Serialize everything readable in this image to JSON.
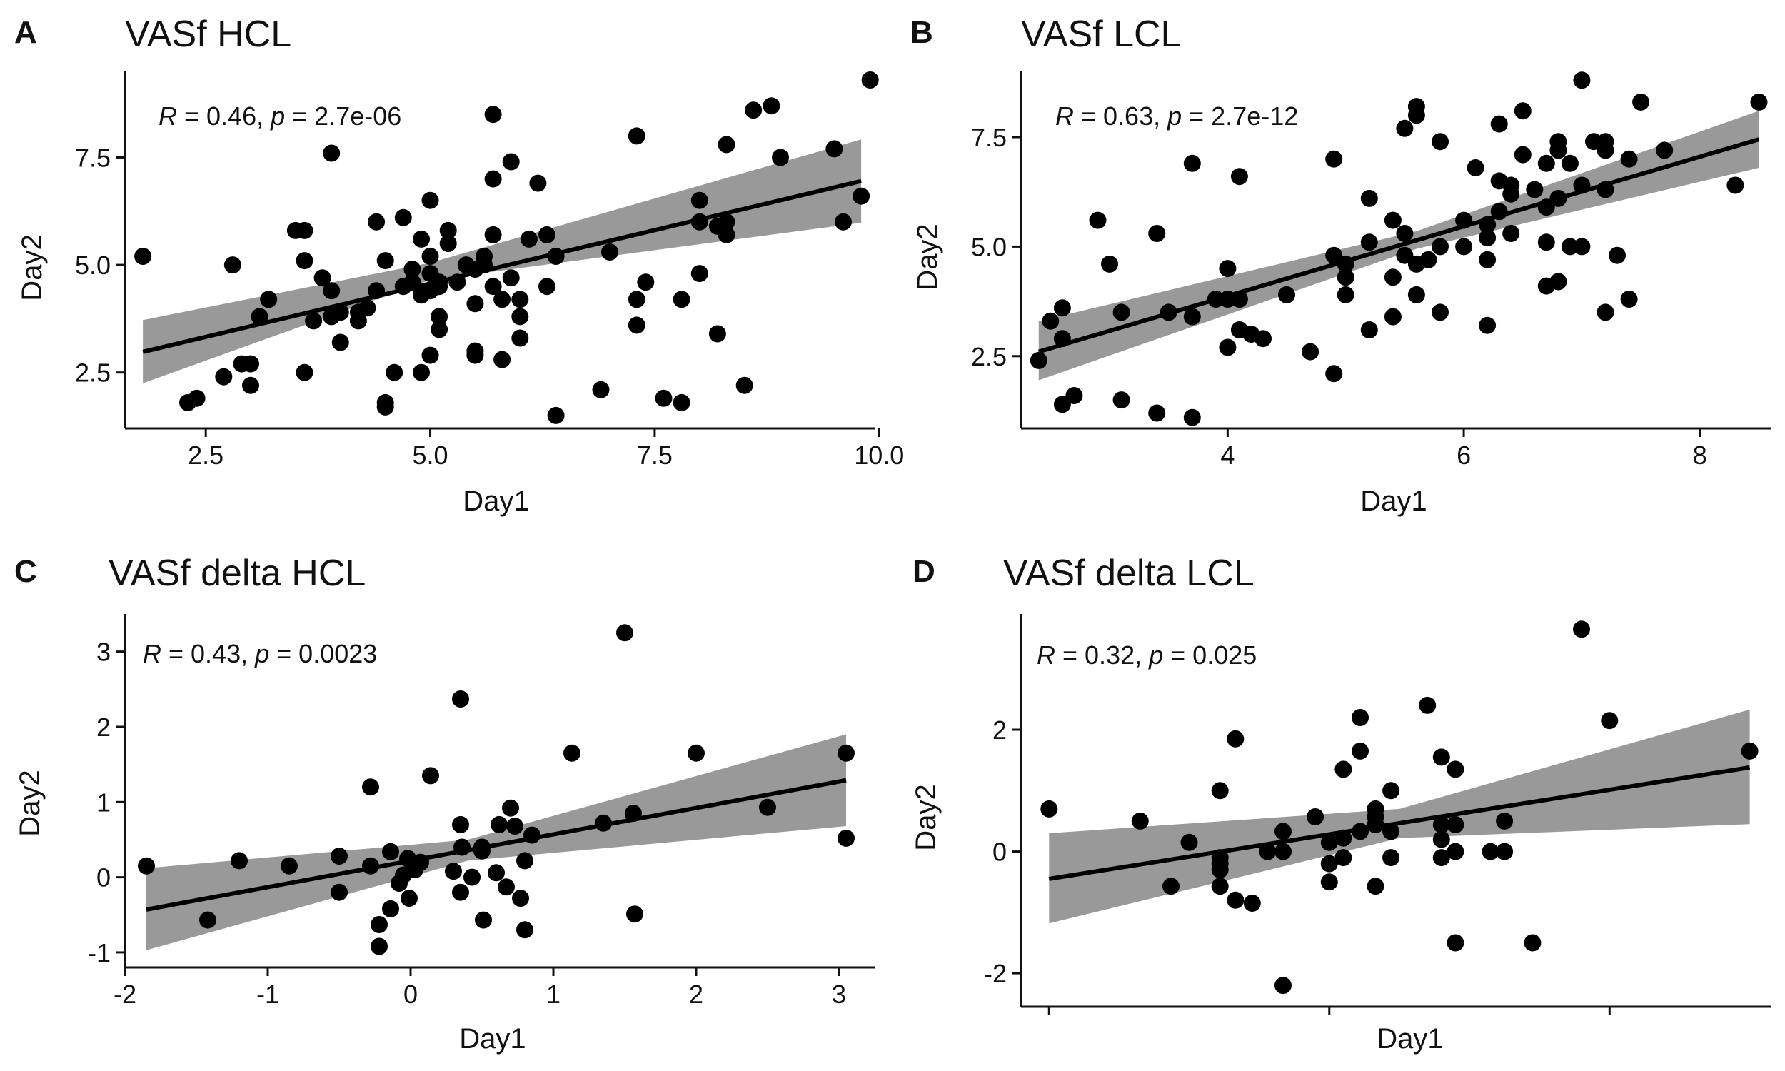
{
  "chart_data": [
    {
      "type": "scatter",
      "panel_letter": "A",
      "title": "VASf HCL",
      "xlabel": "Day1",
      "ylabel": "Day2",
      "stat": {
        "r_symbol": "R",
        "r_text": " = 0.46, ",
        "p_symbol": "p",
        "p_text": " = 2.7e-06"
      },
      "xlim": [
        1.6,
        9.95
      ],
      "ylim": [
        1.2,
        9.5
      ],
      "xticks": [
        {
          "value": 2.5,
          "label": "2.5"
        },
        {
          "value": 5.0,
          "label": "5.0"
        },
        {
          "value": 7.5,
          "label": "7.5"
        },
        {
          "value": 10.0,
          "label": "10.0"
        }
      ],
      "yticks": [
        {
          "value": 2.5,
          "label": "2.5"
        },
        {
          "value": 5.0,
          "label": "5.0"
        },
        {
          "value": 7.5,
          "label": "7.5"
        }
      ],
      "regression": {
        "x": [
          1.8,
          9.8
        ],
        "y": [
          2.98,
          6.95
        ]
      },
      "ci_band": {
        "x": [
          1.8,
          5.0,
          9.8
        ],
        "lower": [
          2.25,
          4.65,
          5.98
        ],
        "upper": [
          3.72,
          5.05,
          7.92
        ]
      },
      "points": [
        [
          1.8,
          5.2
        ],
        [
          2.3,
          1.8
        ],
        [
          2.4,
          1.9
        ],
        [
          2.7,
          2.4
        ],
        [
          2.8,
          5.0
        ],
        [
          2.9,
          2.7
        ],
        [
          3.0,
          2.7
        ],
        [
          3.0,
          2.2
        ],
        [
          3.1,
          3.8
        ],
        [
          3.2,
          4.2
        ],
        [
          3.5,
          5.8
        ],
        [
          3.6,
          5.8
        ],
        [
          3.6,
          2.5
        ],
        [
          3.6,
          5.1
        ],
        [
          3.7,
          3.7
        ],
        [
          3.8,
          4.7
        ],
        [
          3.9,
          7.6
        ],
        [
          3.9,
          4.4
        ],
        [
          3.9,
          3.8
        ],
        [
          4.0,
          3.9
        ],
        [
          4.0,
          3.2
        ],
        [
          4.2,
          3.9
        ],
        [
          4.2,
          3.7
        ],
        [
          4.3,
          4.0
        ],
        [
          4.4,
          6.0
        ],
        [
          4.4,
          4.4
        ],
        [
          4.5,
          5.1
        ],
        [
          4.5,
          1.8
        ],
        [
          4.5,
          1.7
        ],
        [
          4.6,
          2.5
        ],
        [
          4.7,
          6.1
        ],
        [
          4.7,
          4.5
        ],
        [
          4.8,
          4.9
        ],
        [
          4.8,
          4.6
        ],
        [
          4.9,
          5.6
        ],
        [
          4.9,
          4.3
        ],
        [
          4.9,
          2.5
        ],
        [
          5.0,
          4.8
        ],
        [
          5.0,
          2.9
        ],
        [
          5.0,
          6.5
        ],
        [
          5.0,
          5.2
        ],
        [
          5.0,
          4.4
        ],
        [
          5.1,
          3.8
        ],
        [
          5.1,
          3.5
        ],
        [
          5.1,
          4.6
        ],
        [
          5.1,
          4.5
        ],
        [
          5.2,
          5.8
        ],
        [
          5.2,
          5.5
        ],
        [
          5.3,
          4.6
        ],
        [
          5.4,
          5.0
        ],
        [
          5.5,
          4.9
        ],
        [
          5.5,
          4.1
        ],
        [
          5.5,
          2.9
        ],
        [
          5.5,
          3.0
        ],
        [
          5.6,
          5.2
        ],
        [
          5.6,
          5.0
        ],
        [
          5.7,
          8.5
        ],
        [
          5.7,
          7.0
        ],
        [
          5.7,
          5.7
        ],
        [
          5.7,
          4.5
        ],
        [
          5.8,
          2.8
        ],
        [
          5.8,
          4.2
        ],
        [
          5.9,
          7.4
        ],
        [
          5.9,
          4.7
        ],
        [
          6.0,
          4.2
        ],
        [
          6.0,
          3.8
        ],
        [
          6.0,
          3.3
        ],
        [
          6.1,
          5.6
        ],
        [
          6.2,
          6.9
        ],
        [
          6.3,
          5.7
        ],
        [
          6.3,
          4.5
        ],
        [
          6.4,
          1.5
        ],
        [
          6.4,
          5.2
        ],
        [
          6.9,
          2.1
        ],
        [
          7.0,
          5.3
        ],
        [
          7.3,
          8.0
        ],
        [
          7.3,
          4.2
        ],
        [
          7.3,
          3.6
        ],
        [
          7.4,
          4.6
        ],
        [
          7.6,
          1.9
        ],
        [
          7.8,
          1.8
        ],
        [
          7.8,
          4.2
        ],
        [
          8.0,
          6.5
        ],
        [
          8.0,
          6.0
        ],
        [
          8.0,
          4.8
        ],
        [
          8.2,
          5.9
        ],
        [
          8.2,
          3.4
        ],
        [
          8.3,
          7.8
        ],
        [
          8.3,
          6.0
        ],
        [
          8.3,
          5.7
        ],
        [
          8.5,
          2.2
        ],
        [
          8.6,
          8.6
        ],
        [
          8.8,
          8.7
        ],
        [
          8.9,
          7.5
        ],
        [
          9.5,
          7.7
        ],
        [
          9.6,
          6.0
        ],
        [
          9.8,
          6.6
        ],
        [
          9.9,
          9.3
        ]
      ]
    },
    {
      "type": "scatter",
      "panel_letter": "B",
      "title": "VASf LCL",
      "xlabel": "Day1",
      "ylabel": "Day2",
      "stat": {
        "r_symbol": "R",
        "r_text": " = 0.63, ",
        "p_symbol": "p",
        "p_text": " = 2.7e-12"
      },
      "xlim": [
        2.25,
        8.6
      ],
      "ylim": [
        0.85,
        9.0
      ],
      "xticks": [
        {
          "value": 4,
          "label": "4"
        },
        {
          "value": 6,
          "label": "6"
        },
        {
          "value": 8,
          "label": "8"
        }
      ],
      "yticks": [
        {
          "value": 2.5,
          "label": "2.5"
        },
        {
          "value": 5.0,
          "label": "5.0"
        },
        {
          "value": 7.5,
          "label": "7.5"
        }
      ],
      "regression": {
        "x": [
          2.4,
          8.5
        ],
        "y": [
          2.6,
          7.45
        ]
      },
      "ci_band": {
        "x": [
          2.4,
          5.6,
          8.5
        ],
        "lower": [
          1.95,
          4.95,
          6.8
        ],
        "upper": [
          3.3,
          5.35,
          8.1
        ]
      },
      "points": [
        [
          2.4,
          2.4
        ],
        [
          2.5,
          3.3
        ],
        [
          2.6,
          3.6
        ],
        [
          2.6,
          2.9
        ],
        [
          2.6,
          1.4
        ],
        [
          2.7,
          1.6
        ],
        [
          2.9,
          5.6
        ],
        [
          3.0,
          4.6
        ],
        [
          3.1,
          3.5
        ],
        [
          3.1,
          1.5
        ],
        [
          3.4,
          5.3
        ],
        [
          3.4,
          1.2
        ],
        [
          3.5,
          3.5
        ],
        [
          3.7,
          6.9
        ],
        [
          3.7,
          3.4
        ],
        [
          3.7,
          1.1
        ],
        [
          3.9,
          3.8
        ],
        [
          4.0,
          4.5
        ],
        [
          4.0,
          3.8
        ],
        [
          4.0,
          2.7
        ],
        [
          4.1,
          6.6
        ],
        [
          4.1,
          3.8
        ],
        [
          4.1,
          3.1
        ],
        [
          4.2,
          3.0
        ],
        [
          4.3,
          2.9
        ],
        [
          4.5,
          3.9
        ],
        [
          4.7,
          2.6
        ],
        [
          4.9,
          7.0
        ],
        [
          4.9,
          4.8
        ],
        [
          4.9,
          2.1
        ],
        [
          5.0,
          4.6
        ],
        [
          5.0,
          4.3
        ],
        [
          5.0,
          3.9
        ],
        [
          5.2,
          6.1
        ],
        [
          5.2,
          5.1
        ],
        [
          5.2,
          3.1
        ],
        [
          5.4,
          5.6
        ],
        [
          5.4,
          4.3
        ],
        [
          5.4,
          3.4
        ],
        [
          5.5,
          7.7
        ],
        [
          5.5,
          5.3
        ],
        [
          5.5,
          4.8
        ],
        [
          5.6,
          8.2
        ],
        [
          5.6,
          8.0
        ],
        [
          5.6,
          4.6
        ],
        [
          5.6,
          3.9
        ],
        [
          5.7,
          4.7
        ],
        [
          5.8,
          7.4
        ],
        [
          5.8,
          5.0
        ],
        [
          5.8,
          3.5
        ],
        [
          6.0,
          5.6
        ],
        [
          6.0,
          5.0
        ],
        [
          6.1,
          6.8
        ],
        [
          6.2,
          5.5
        ],
        [
          6.2,
          5.2
        ],
        [
          6.2,
          4.7
        ],
        [
          6.2,
          3.2
        ],
        [
          6.3,
          7.8
        ],
        [
          6.3,
          6.5
        ],
        [
          6.3,
          5.8
        ],
        [
          6.4,
          6.4
        ],
        [
          6.4,
          6.2
        ],
        [
          6.4,
          5.3
        ],
        [
          6.5,
          8.1
        ],
        [
          6.5,
          7.1
        ],
        [
          6.6,
          6.3
        ],
        [
          6.7,
          6.9
        ],
        [
          6.7,
          5.9
        ],
        [
          6.7,
          5.1
        ],
        [
          6.7,
          4.1
        ],
        [
          6.8,
          7.4
        ],
        [
          6.8,
          7.2
        ],
        [
          6.8,
          6.1
        ],
        [
          6.8,
          4.2
        ],
        [
          6.9,
          6.9
        ],
        [
          6.9,
          5.0
        ],
        [
          7.0,
          8.8
        ],
        [
          7.0,
          6.4
        ],
        [
          7.0,
          5.0
        ],
        [
          7.1,
          7.4
        ],
        [
          7.2,
          7.4
        ],
        [
          7.2,
          7.2
        ],
        [
          7.2,
          6.3
        ],
        [
          7.2,
          3.5
        ],
        [
          7.3,
          4.8
        ],
        [
          7.4,
          7.0
        ],
        [
          7.4,
          3.8
        ],
        [
          7.5,
          8.3
        ],
        [
          7.7,
          7.2
        ],
        [
          8.3,
          6.4
        ],
        [
          8.5,
          8.3
        ]
      ]
    },
    {
      "type": "scatter",
      "panel_letter": "C",
      "title": "VASf delta HCL",
      "xlabel": "Day1",
      "ylabel": "Day2",
      "stat": {
        "r_symbol": "R",
        "r_text": " = 0.43, ",
        "p_symbol": "p",
        "p_text": " = 0.0023"
      },
      "xlim": [
        -2.0,
        3.25
      ],
      "ylim": [
        -1.2,
        3.5
      ],
      "xticks": [
        {
          "value": -2,
          "label": "-2"
        },
        {
          "value": -1,
          "label": "-1"
        },
        {
          "value": 0,
          "label": "0"
        },
        {
          "value": 1,
          "label": "1"
        },
        {
          "value": 2,
          "label": "2"
        },
        {
          "value": 3,
          "label": "3"
        }
      ],
      "yticks": [
        {
          "value": -1,
          "label": "-1"
        },
        {
          "value": 0,
          "label": "0"
        },
        {
          "value": 1,
          "label": "1"
        },
        {
          "value": 2,
          "label": "2"
        },
        {
          "value": 3,
          "label": "3"
        }
      ],
      "regression": {
        "x": [
          -1.85,
          3.05
        ],
        "y": [
          -0.43,
          1.29
        ]
      },
      "ci_band": {
        "x": [
          -1.85,
          0.4,
          3.05
        ],
        "lower": [
          -0.97,
          0.22,
          0.68
        ],
        "upper": [
          0.12,
          0.5,
          1.9
        ]
      },
      "points": [
        [
          -1.85,
          0.15
        ],
        [
          -1.42,
          -0.57
        ],
        [
          -1.2,
          0.22
        ],
        [
          -0.85,
          0.15
        ],
        [
          -0.5,
          0.28
        ],
        [
          -0.5,
          -0.2
        ],
        [
          -0.28,
          1.2
        ],
        [
          -0.28,
          0.15
        ],
        [
          -0.22,
          -0.63
        ],
        [
          -0.22,
          -0.92
        ],
        [
          -0.14,
          0.34
        ],
        [
          -0.14,
          -0.42
        ],
        [
          -0.08,
          -0.08
        ],
        [
          -0.05,
          0.03
        ],
        [
          -0.02,
          0.25
        ],
        [
          -0.01,
          -0.28
        ],
        [
          0.03,
          0.1
        ],
        [
          0.07,
          0.2
        ],
        [
          0.14,
          1.35
        ],
        [
          0.3,
          0.08
        ],
        [
          0.35,
          2.37
        ],
        [
          0.35,
          0.7
        ],
        [
          0.35,
          -0.2
        ],
        [
          0.36,
          0.4
        ],
        [
          0.43,
          -0.0
        ],
        [
          0.5,
          0.4
        ],
        [
          0.5,
          0.35
        ],
        [
          0.51,
          -0.57
        ],
        [
          0.6,
          0.06
        ],
        [
          0.62,
          0.7
        ],
        [
          0.67,
          -0.13
        ],
        [
          0.7,
          0.92
        ],
        [
          0.73,
          0.68
        ],
        [
          0.77,
          -0.28
        ],
        [
          0.8,
          0.22
        ],
        [
          0.8,
          -0.7
        ],
        [
          0.85,
          0.56
        ],
        [
          1.13,
          1.65
        ],
        [
          1.35,
          0.72
        ],
        [
          1.5,
          3.25
        ],
        [
          1.56,
          0.85
        ],
        [
          1.57,
          -0.49
        ],
        [
          2.0,
          1.65
        ],
        [
          2.5,
          0.93
        ],
        [
          3.05,
          1.65
        ],
        [
          3.05,
          0.52
        ]
      ]
    },
    {
      "type": "scatter",
      "panel_letter": "D",
      "title": "VASf delta LCL",
      "xlabel": "Day1",
      "ylabel": "Day2",
      "stat": {
        "r_symbol": "R",
        "r_text": " = 0.32, ",
        "p_symbol": "p",
        "p_text": " = 0.025"
      },
      "xlim": [
        -2.2,
        3.15
      ],
      "ylim": [
        -2.55,
        3.9
      ],
      "xticks": [
        {
          "value": -2,
          "label": ""
        },
        {
          "value": 0,
          "label": ""
        },
        {
          "value": 2,
          "label": ""
        },
        {
          "value": 4,
          "label": ""
        }
      ],
      "yticks": [
        {
          "value": -2,
          "label": "-2"
        },
        {
          "value": 0,
          "label": "0"
        },
        {
          "value": 2,
          "label": "2"
        }
      ],
      "regression": {
        "x": [
          -2.0,
          3.0
        ],
        "y": [
          -0.45,
          1.38
        ]
      },
      "ci_band": {
        "x": [
          -2.0,
          0.5,
          3.0
        ],
        "lower": [
          -1.18,
          0.22,
          0.45
        ],
        "upper": [
          0.3,
          0.7,
          2.33
        ]
      },
      "points": [
        [
          -2.0,
          0.7
        ],
        [
          -1.35,
          0.5
        ],
        [
          -1.13,
          -0.57
        ],
        [
          -1.0,
          0.15
        ],
        [
          -0.78,
          1.0
        ],
        [
          -0.78,
          -0.57
        ],
        [
          -0.78,
          -0.2
        ],
        [
          -0.78,
          -0.1
        ],
        [
          -0.78,
          -0.3
        ],
        [
          -0.67,
          1.85
        ],
        [
          -0.67,
          -0.8
        ],
        [
          -0.55,
          -0.85
        ],
        [
          -0.44,
          0.0
        ],
        [
          -0.33,
          0.33
        ],
        [
          -0.33,
          0.0
        ],
        [
          -0.33,
          -2.2
        ],
        [
          -0.1,
          0.57
        ],
        [
          0.0,
          -0.2
        ],
        [
          0.0,
          0.15
        ],
        [
          0.0,
          -0.5
        ],
        [
          0.1,
          1.35
        ],
        [
          0.1,
          -0.1
        ],
        [
          0.1,
          0.22
        ],
        [
          0.22,
          2.2
        ],
        [
          0.22,
          1.65
        ],
        [
          0.22,
          0.33
        ],
        [
          0.33,
          0.7
        ],
        [
          0.33,
          0.57
        ],
        [
          0.33,
          0.44
        ],
        [
          0.33,
          -0.57
        ],
        [
          0.44,
          1.0
        ],
        [
          0.44,
          0.33
        ],
        [
          0.44,
          -0.1
        ],
        [
          0.7,
          2.4
        ],
        [
          0.8,
          1.55
        ],
        [
          0.8,
          0.44
        ],
        [
          0.8,
          0.2
        ],
        [
          0.8,
          -0.1
        ],
        [
          0.9,
          1.35
        ],
        [
          0.9,
          0.44
        ],
        [
          0.9,
          0.0
        ],
        [
          0.9,
          -1.5
        ],
        [
          1.15,
          0.0
        ],
        [
          1.25,
          0.0
        ],
        [
          1.25,
          0.5
        ],
        [
          1.45,
          -1.5
        ],
        [
          1.8,
          3.65
        ],
        [
          2.0,
          2.15
        ],
        [
          3.0,
          1.65
        ]
      ]
    }
  ]
}
